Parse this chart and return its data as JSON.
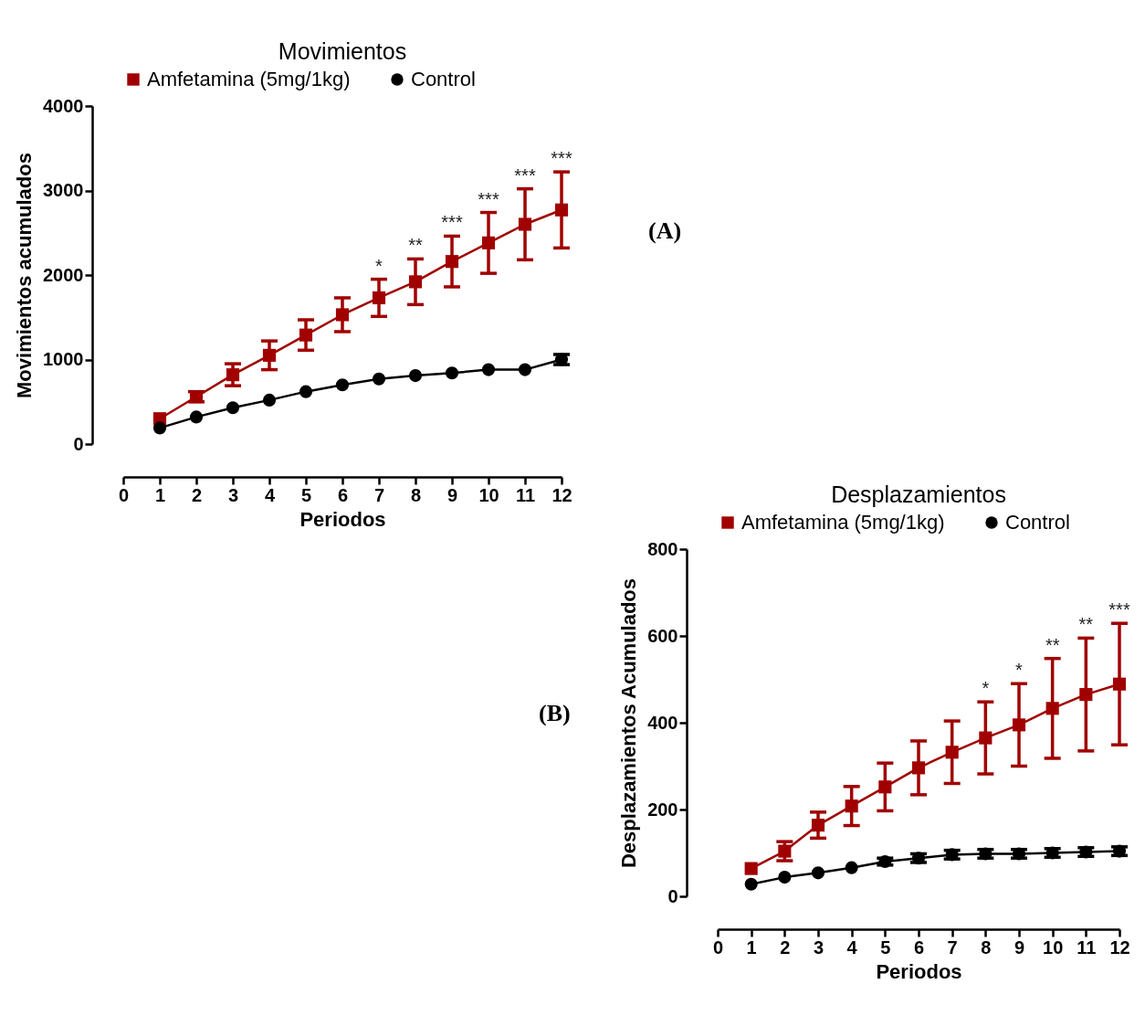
{
  "chart_data": [
    {
      "type": "line",
      "title": "Movimientos",
      "xlabel": "Periodos",
      "ylabel": "Movimientos acumulados",
      "x": [
        1,
        2,
        3,
        4,
        5,
        6,
        7,
        8,
        9,
        10,
        11,
        12
      ],
      "xlim": [
        0,
        12
      ],
      "xticks": [
        0,
        1,
        2,
        3,
        4,
        5,
        6,
        7,
        8,
        9,
        10,
        11,
        12
      ],
      "ylim": [
        0,
        4000
      ],
      "yticks": [
        0,
        1000,
        2000,
        3000,
        4000
      ],
      "grid": false,
      "legend": "top",
      "line_style": "solid",
      "series": [
        {
          "name": "Amfetamina (5mg/1kg)",
          "color": "#a00000",
          "marker": "square",
          "values": [
            300,
            560,
            820,
            1050,
            1290,
            1530,
            1730,
            1920,
            2160,
            2380,
            2600,
            2770
          ],
          "errors": [
            null,
            60,
            130,
            170,
            180,
            200,
            220,
            270,
            300,
            360,
            420,
            450
          ]
        },
        {
          "name": "Control",
          "color": "#000000",
          "marker": "circle",
          "values": [
            190,
            320,
            430,
            520,
            620,
            700,
            770,
            810,
            840,
            880,
            880,
            1000
          ],
          "errors": [
            null,
            null,
            null,
            null,
            null,
            null,
            null,
            null,
            null,
            null,
            null,
            60
          ]
        }
      ],
      "annotations": [
        {
          "text": "*",
          "x": 7,
          "y": 1950
        },
        {
          "text": "**",
          "x": 8,
          "y": 2190
        },
        {
          "text": "***",
          "x": 9,
          "y": 2460
        },
        {
          "text": "***",
          "x": 10,
          "y": 2740
        },
        {
          "text": "***",
          "x": 11,
          "y": 3020
        },
        {
          "text": "***",
          "x": 12,
          "y": 3220
        },
        "(A)"
      ]
    },
    {
      "type": "line",
      "title": "Desplazamientos",
      "xlabel": "Periodos",
      "ylabel": "Desplazamientos Acumulados",
      "x": [
        1,
        2,
        3,
        4,
        5,
        6,
        7,
        8,
        9,
        10,
        11,
        12
      ],
      "xlim": [
        0,
        12
      ],
      "xticks": [
        0,
        1,
        2,
        3,
        4,
        5,
        6,
        7,
        8,
        9,
        10,
        11,
        12
      ],
      "ylim": [
        0,
        800
      ],
      "yticks": [
        0,
        200,
        400,
        600,
        800
      ],
      "grid": false,
      "legend": "top",
      "line_style": "solid",
      "series": [
        {
          "name": "Amfetamina (5mg/1kg)",
          "color": "#a00000",
          "marker": "square",
          "values": [
            64,
            104,
            164,
            208,
            252,
            296,
            332,
            365,
            395,
            433,
            465,
            489
          ],
          "errors": [
            null,
            22,
            30,
            45,
            55,
            62,
            72,
            83,
            95,
            115,
            130,
            140
          ]
        },
        {
          "name": "Control",
          "color": "#000000",
          "marker": "circle",
          "values": [
            28,
            44,
            54,
            66,
            80,
            88,
            96,
            98,
            98,
            100,
            102,
            104
          ],
          "errors": [
            null,
            null,
            null,
            null,
            8,
            10,
            10,
            10,
            10,
            10,
            10,
            10
          ]
        }
      ],
      "annotations": [
        {
          "text": "*",
          "x": 8,
          "y": 448
        },
        {
          "text": "*",
          "x": 9,
          "y": 490
        },
        {
          "text": "**",
          "x": 10,
          "y": 548
        },
        {
          "text": "**",
          "x": 11,
          "y": 595
        },
        {
          "text": "***",
          "x": 12,
          "y": 629
        },
        "(B)"
      ]
    }
  ]
}
